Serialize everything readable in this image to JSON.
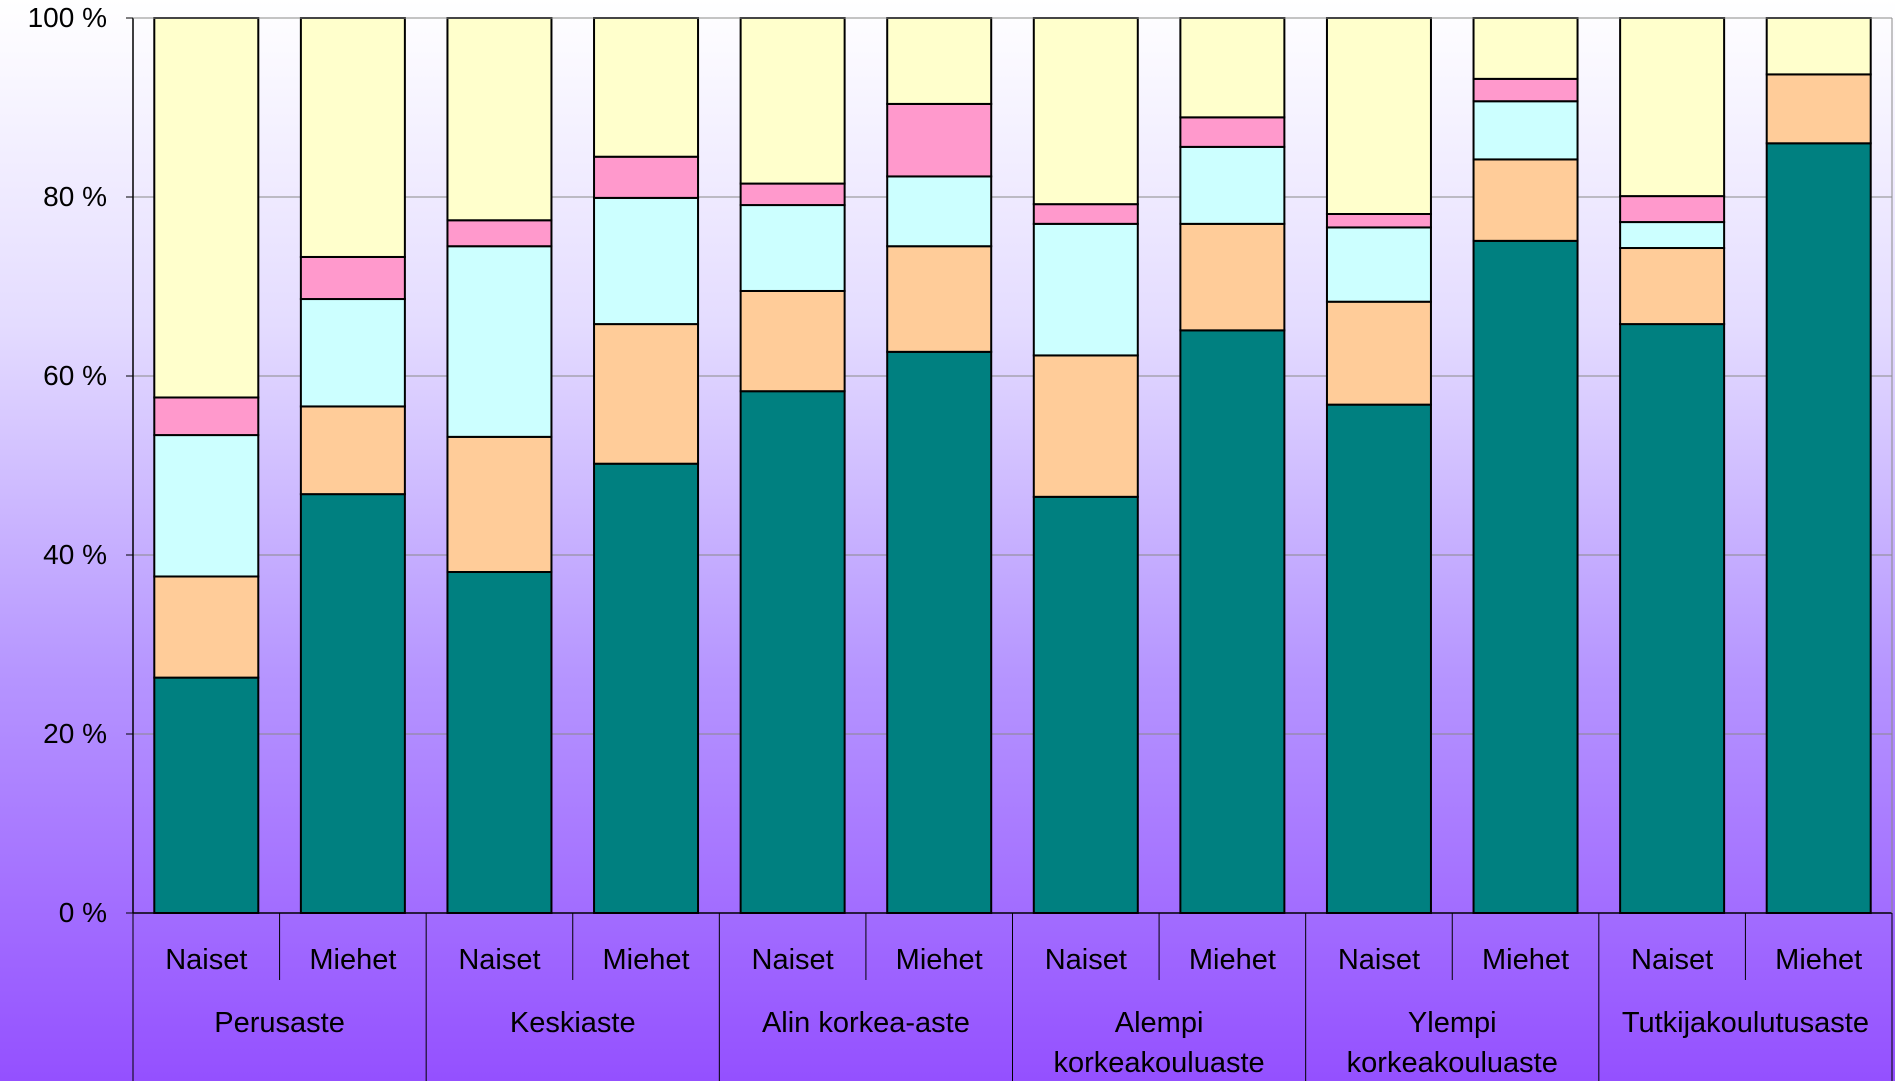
{
  "chart_data": {
    "type": "bar",
    "stacked": true,
    "percent_stacked": true,
    "y_ticks": [
      "0 %",
      "20 %",
      "40 %",
      "60 %",
      "80 %",
      "100 %"
    ],
    "ylim": [
      0,
      100
    ],
    "grid": true,
    "legend": "none",
    "groups": [
      "Perusaste",
      "Keskiaste",
      "Alin korkea-aste",
      "Alempi korkeakouluaste",
      "Ylempi korkeakouluaste",
      "Tutkijakoulutusaste"
    ],
    "group_label_lines": [
      [
        "Perusaste"
      ],
      [
        "Keskiaste"
      ],
      [
        "Alin korkea-aste"
      ],
      [
        "Alempi",
        "korkeakouluaste"
      ],
      [
        "Ylempi",
        "korkeakouluaste"
      ],
      [
        "Tutkijakoulutusaste"
      ]
    ],
    "sublabels": [
      "Naiset",
      "Miehet"
    ],
    "categories": [
      "Perusaste Naiset",
      "Perusaste Miehet",
      "Keskiaste Naiset",
      "Keskiaste Miehet",
      "Alin korkea-aste Naiset",
      "Alin korkea-aste Miehet",
      "Alempi korkeakouluaste Naiset",
      "Alempi korkeakouluaste Miehet",
      "Ylempi korkeakouluaste Naiset",
      "Ylempi korkeakouluaste Miehet",
      "Tutkijakoulutusaste Naiset",
      "Tutkijakoulutusaste Miehet"
    ],
    "series": [
      {
        "color": "#008080",
        "values": [
          26.3,
          46.8,
          38.1,
          50.2,
          58.3,
          62.7,
          46.5,
          65.1,
          56.8,
          75.1,
          65.8,
          86.0
        ]
      },
      {
        "color": "#ffcc99",
        "values": [
          11.3,
          9.8,
          15.1,
          15.6,
          11.2,
          11.8,
          15.8,
          11.9,
          11.5,
          9.1,
          8.5,
          7.7
        ]
      },
      {
        "color": "#ccffff",
        "values": [
          15.8,
          12.0,
          21.3,
          14.1,
          9.6,
          7.8,
          14.7,
          8.6,
          8.3,
          6.5,
          2.9,
          0.0
        ]
      },
      {
        "color": "#ff99cc",
        "values": [
          4.2,
          4.7,
          2.9,
          4.6,
          2.4,
          8.1,
          2.2,
          3.3,
          1.5,
          2.5,
          2.9,
          0.0
        ]
      },
      {
        "color": "#ffffcc",
        "values": [
          42.4,
          26.7,
          22.6,
          15.5,
          18.5,
          9.6,
          20.8,
          11.1,
          21.9,
          6.8,
          19.9,
          6.3
        ]
      }
    ]
  }
}
